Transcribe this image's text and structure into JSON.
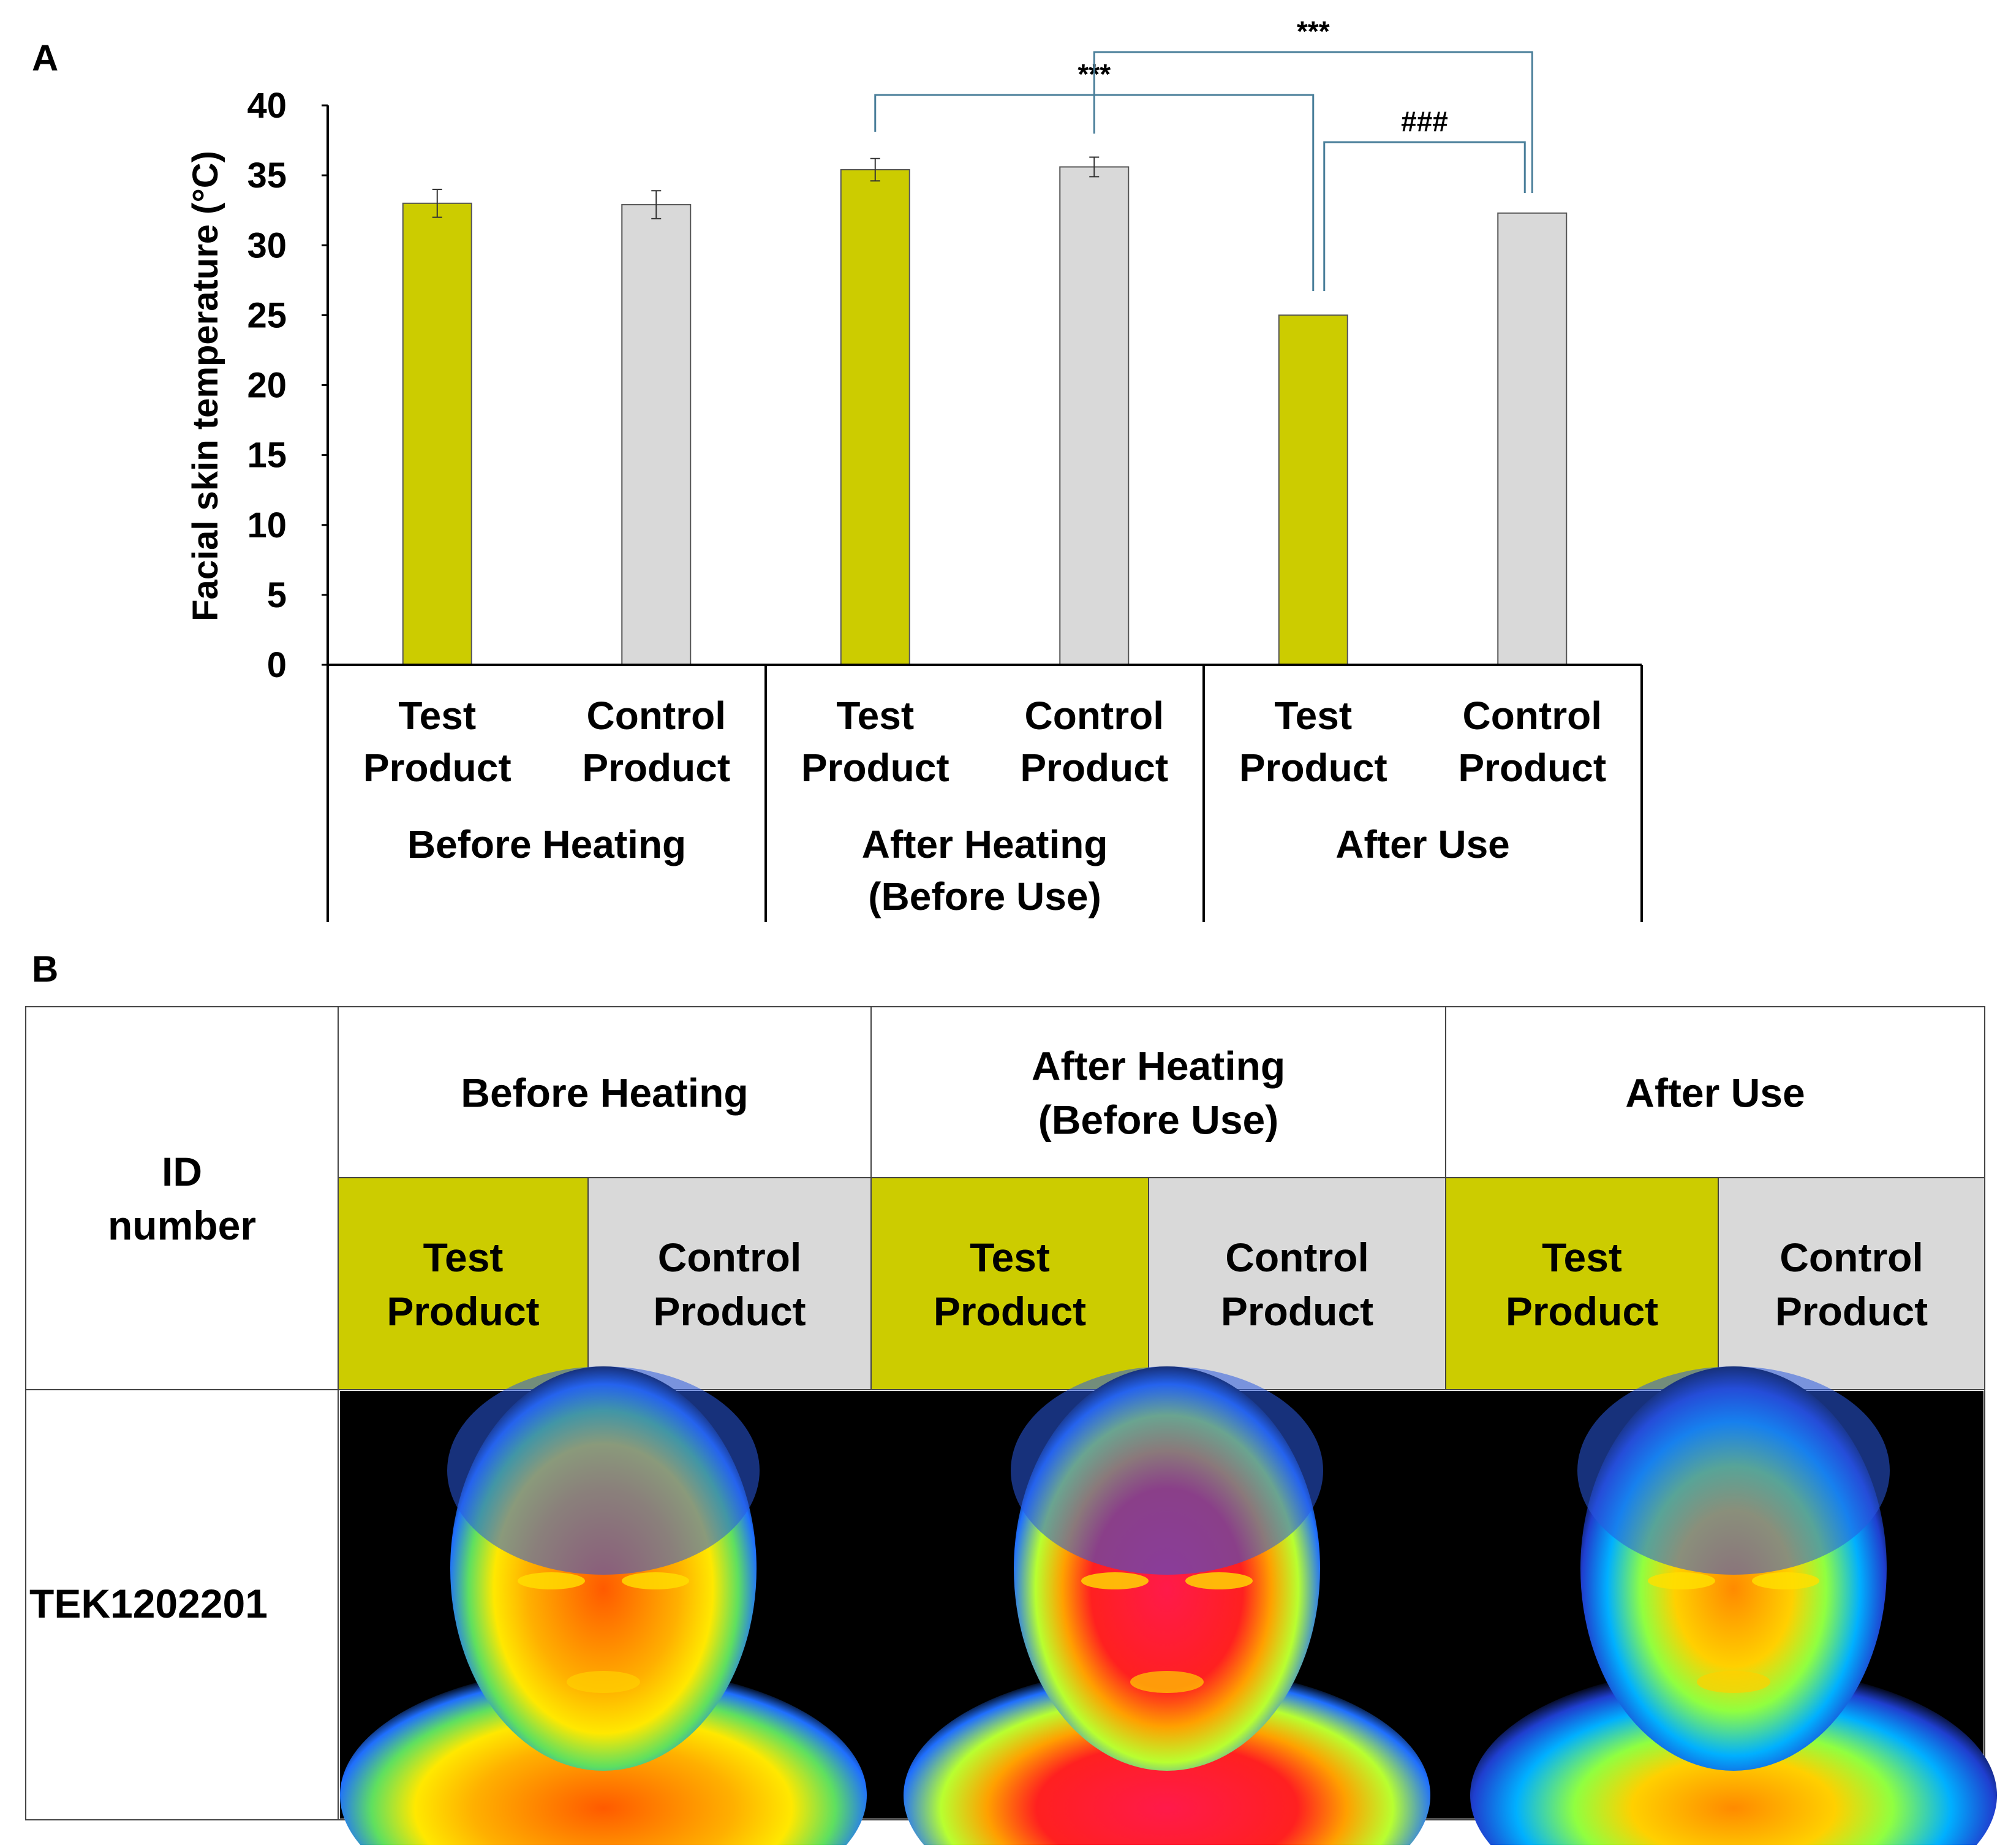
{
  "panel_a_label": "A",
  "panel_b_label": "B",
  "chart_data": {
    "type": "bar",
    "title": "",
    "ylabel": "Facial skin temperature (°C)",
    "xlabel": "",
    "ylim": [
      0,
      40
    ],
    "yticks": [
      0,
      5,
      10,
      15,
      20,
      25,
      30,
      35,
      40
    ],
    "groups": [
      {
        "label_lines": [
          "Before Heating"
        ],
        "categories": [
          [
            "Test",
            "Product"
          ],
          [
            "Control",
            "Product"
          ]
        ]
      },
      {
        "label_lines": [
          "After Heating",
          "(Before Use)"
        ],
        "categories": [
          [
            "Test",
            "Product"
          ],
          [
            "Control",
            "Product"
          ]
        ]
      },
      {
        "label_lines": [
          "After Use"
        ],
        "categories": [
          [
            "Test",
            "Product"
          ],
          [
            "Control",
            "Product"
          ]
        ]
      }
    ],
    "values": [
      33.0,
      32.9,
      35.4,
      35.6,
      25.0,
      32.3
    ],
    "errors": [
      1.0,
      1.0,
      0.8,
      0.7,
      0.0,
      0.0
    ],
    "series_kind": [
      "test",
      "control",
      "test",
      "control",
      "test",
      "control"
    ],
    "colors": {
      "test": "#cccc00",
      "control": "#d9d9d9"
    },
    "annotations": [
      {
        "text": "***",
        "from": 2,
        "to": 4
      },
      {
        "text": "***",
        "from": 3,
        "to": 5
      },
      {
        "text": "###",
        "from": 4,
        "to": 5
      }
    ]
  },
  "table": {
    "id_header": [
      "ID",
      "number"
    ],
    "groups": [
      {
        "lines": [
          "Before Heating"
        ]
      },
      {
        "lines": [
          "After Heating",
          "(Before Use)"
        ]
      },
      {
        "lines": [
          "After Use"
        ]
      }
    ],
    "subheaders": [
      {
        "lines": [
          "Test",
          "Product"
        ],
        "kind": "test"
      },
      {
        "lines": [
          "Control",
          "Product"
        ],
        "kind": "control"
      },
      {
        "lines": [
          "Test",
          "Product"
        ],
        "kind": "test"
      },
      {
        "lines": [
          "Control",
          "Product"
        ],
        "kind": "control"
      },
      {
        "lines": [
          "Test",
          "Product"
        ],
        "kind": "test"
      },
      {
        "lines": [
          "Control",
          "Product"
        ],
        "kind": "control"
      }
    ],
    "row_id": "TEK1202201",
    "thermal_images": [
      "before-heating-thermal",
      "after-heating-thermal",
      "after-use-thermal"
    ]
  }
}
